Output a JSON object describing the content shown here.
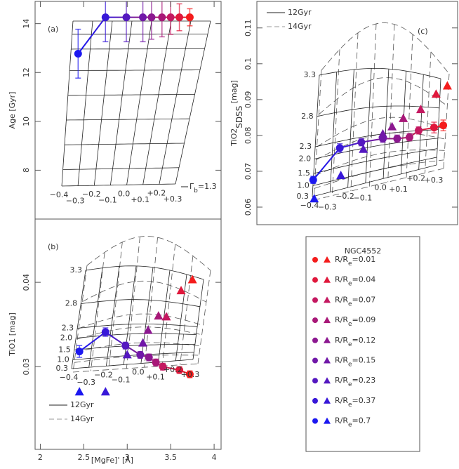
{
  "chart_data": [
    {
      "type": "scatter",
      "panel_label": "(a)",
      "y_label": "Age [Gyr]",
      "xlim": [
        1.94,
        4.08
      ],
      "ylim": [
        6.0,
        14.91
      ],
      "yticks": [
        8,
        10,
        12,
        14
      ],
      "circles": {
        "x": [
          3.72,
          3.6,
          3.5,
          3.4,
          3.28,
          3.18,
          2.99,
          2.75,
          2.435
        ],
        "y": [
          14.26,
          14.26,
          14.26,
          14.26,
          14.26,
          14.26,
          14.26,
          14.26,
          12.77
        ],
        "err": [
          0.35,
          0.55,
          0.7,
          0.8,
          0.9,
          1.0,
          1.0,
          1.0,
          1.0
        ]
      },
      "grid_labels": {
        "rows": [],
        "cols": [
          "−0.4",
          "−0.3",
          "−0.2",
          "−0.1",
          "0.0",
          "+0.1",
          "+0.2",
          "+0.3"
        ]
      },
      "gamma_label": {
        "text": "Γ",
        "sub": "b",
        "suffix": "=1.3"
      }
    },
    {
      "type": "scatter",
      "panel_label": "(b)",
      "y_label": "TiO1 [mag]",
      "x_label": "[MgFe]' [Å]",
      "xlim": [
        1.94,
        4.08
      ],
      "ylim": [
        0.0202,
        0.0475
      ],
      "xticks": [
        2,
        2.5,
        3,
        3.5,
        4
      ],
      "yticks": [
        0.03,
        0.04
      ],
      "circles": {
        "x": [
          3.72,
          3.6,
          3.41,
          3.33,
          3.25,
          3.15,
          2.98,
          2.75,
          2.45
        ],
        "y": [
          0.0291,
          0.0296,
          0.03,
          0.0305,
          0.0311,
          0.0314,
          0.0325,
          0.0341,
          0.0318
        ],
        "err": [
          0.0004,
          0.0004,
          0.0004,
          0.0004,
          0.0004,
          0.0004,
          0.0004,
          0.0005,
          0.0007
        ]
      },
      "triangles": {
        "x": [
          3.75,
          3.62,
          3.45,
          3.36,
          3.24,
          3.18,
          3.0,
          2.75,
          2.45
        ],
        "y": [
          0.0403,
          0.039,
          0.0359,
          0.036,
          0.0343,
          0.0328,
          0.0314,
          0.027,
          0.027
        ]
      },
      "grid_labels": {
        "rows": [
          "3.3",
          "2.8",
          "2.3",
          "2.0",
          "1.5",
          "1.0",
          "0.3"
        ],
        "cols": [
          "−0.4",
          "−0.3",
          "−0.2",
          "−0.1",
          "0.0",
          "+0.1",
          "+0.2",
          "+0.3"
        ]
      },
      "model_legend": [
        {
          "label": "12Gyr",
          "style": "solid"
        },
        {
          "label": "14Gyr",
          "style": "dashed"
        }
      ]
    },
    {
      "type": "scatter",
      "panel_label": "(c)",
      "y_label": {
        "text": "TiO2",
        "sub": "SDSS",
        "suffix": " [mag]"
      },
      "xlim": [
        1.9,
        3.86
      ],
      "ylim": [
        0.0551,
        0.1174
      ],
      "yticks": [
        0.06,
        0.07,
        0.08,
        0.09,
        0.1,
        0.11
      ],
      "circles": {
        "x": [
          3.72,
          3.63,
          3.48,
          3.39,
          3.27,
          3.13,
          2.92,
          2.71,
          2.45
        ],
        "y": [
          0.0828,
          0.0822,
          0.0814,
          0.0795,
          0.0791,
          0.0791,
          0.0781,
          0.0765,
          0.0676
        ],
        "err": [
          0.0015,
          0.0015,
          0.001,
          0.001,
          0.001,
          0.001,
          0.001,
          0.0012,
          0.001
        ]
      },
      "triangles": {
        "x": [
          3.76,
          3.65,
          3.5,
          3.33,
          3.22,
          3.13,
          2.94,
          2.72,
          2.46
        ],
        "y": [
          0.0938,
          0.0915,
          0.0872,
          0.0847,
          0.0824,
          0.0804,
          0.0761,
          0.0688,
          0.0623
        ]
      },
      "grid_labels": {
        "rows": [
          "3.3",
          "2.8",
          "2.3",
          "2.0",
          "1.5",
          "1.0",
          "0.3"
        ],
        "cols": [
          "−0.4",
          "−0.3",
          "−0.2",
          "−0.1",
          "0.0",
          "+0.1",
          "+0.2",
          "+0.3"
        ]
      },
      "model_legend": [
        {
          "label": "12Gyr",
          "style": "solid"
        },
        {
          "label": "14Gyr",
          "style": "dashed"
        }
      ]
    }
  ],
  "legend": {
    "title": "NGC4552",
    "entries": [
      {
        "text": "R/R",
        "sub": "e",
        "suffix": "=0.01",
        "color": "#f41c1c"
      },
      {
        "text": "R/R",
        "sub": "e",
        "suffix": "=0.04",
        "color": "#e0183c"
      },
      {
        "text": "R/R",
        "sub": "e",
        "suffix": "=0.07",
        "color": "#c41860"
      },
      {
        "text": "R/R",
        "sub": "e",
        "suffix": "=0.09",
        "color": "#a81878"
      },
      {
        "text": "R/R",
        "sub": "e",
        "suffix": "=0.12",
        "color": "#8c1890"
      },
      {
        "text": "R/R",
        "sub": "e",
        "suffix": "=0.15",
        "color": "#7018a8"
      },
      {
        "text": "R/R",
        "sub": "e",
        "suffix": "=0.23",
        "color": "#5418c0"
      },
      {
        "text": "R/R",
        "sub": "e",
        "suffix": "=0.37",
        "color": "#3818d8"
      },
      {
        "text": "R/R",
        "sub": "e",
        "suffix": "=0.7",
        "color": "#1c18f0"
      }
    ]
  }
}
